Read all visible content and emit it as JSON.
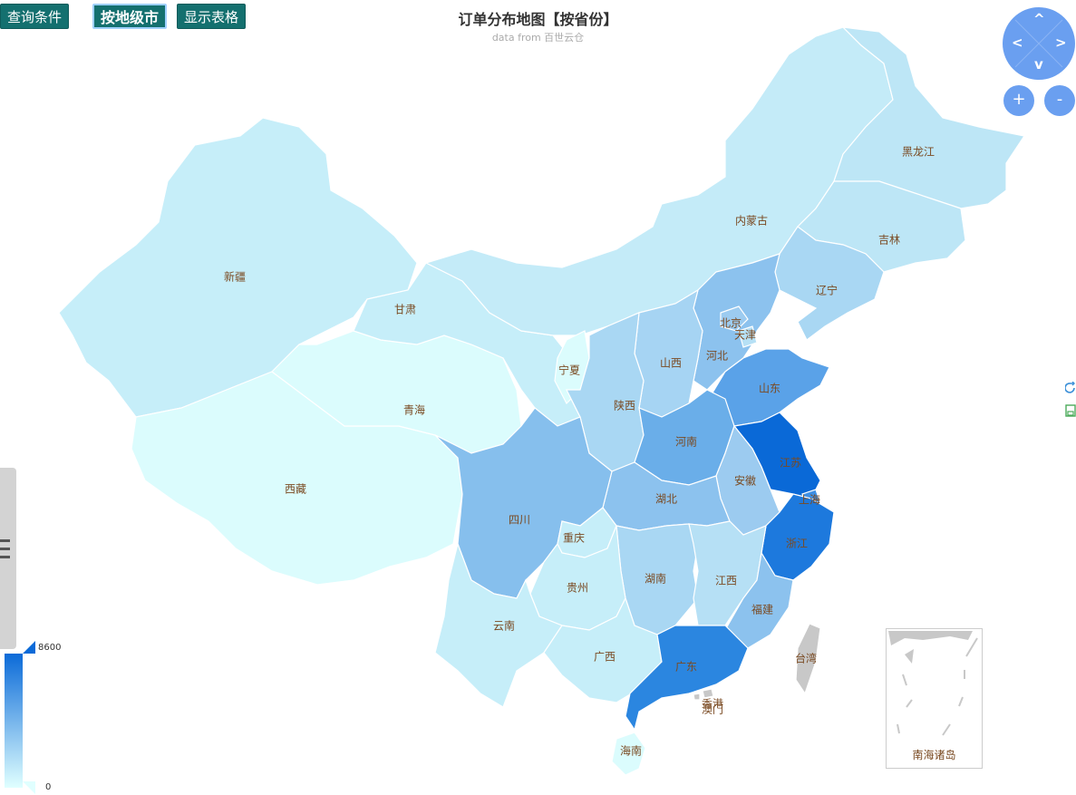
{
  "toolbar": {
    "query_label": "查询条件",
    "by_city_label": "按地级市",
    "show_table_label": "显示表格"
  },
  "title": "订单分布地图【按省份】",
  "subtitle": "data from 百世云仓",
  "legend": {
    "max": "8600",
    "min": "0",
    "color_high": "#0b6ad8",
    "color_low": "#e0ffff"
  },
  "nav": {
    "up": "^",
    "down": "v",
    "left": "<",
    "right": ">",
    "zoom_in": "+",
    "zoom_out": "-"
  },
  "provinces": [
    {
      "name": "黑龙江",
      "color": "#bde6f6"
    },
    {
      "name": "吉林",
      "color": "#bde6f6"
    },
    {
      "name": "辽宁",
      "color": "#a9d7f3"
    },
    {
      "name": "内蒙古",
      "color": "#c4ebf8"
    },
    {
      "name": "北京",
      "color": "#9ccbf0"
    },
    {
      "name": "天津",
      "color": "#b6e0f5"
    },
    {
      "name": "河北",
      "color": "#8cc2ee"
    },
    {
      "name": "山西",
      "color": "#a6d4f3"
    },
    {
      "name": "山东",
      "color": "#5aa2e8"
    },
    {
      "name": "新疆",
      "color": "#c6eef9"
    },
    {
      "name": "甘肃",
      "color": "#c6eef9"
    },
    {
      "name": "宁夏",
      "color": "#dbfcfd"
    },
    {
      "name": "陕西",
      "color": "#a9d7f3"
    },
    {
      "name": "青海",
      "color": "#dbfcfd"
    },
    {
      "name": "西藏",
      "color": "#dbfcfd"
    },
    {
      "name": "河南",
      "color": "#6aaee9"
    },
    {
      "name": "江苏",
      "color": "#0a69d7"
    },
    {
      "name": "安徽",
      "color": "#9ccbf0"
    },
    {
      "name": "上海",
      "color": "#3f8fe3"
    },
    {
      "name": "湖北",
      "color": "#8cc2ee"
    },
    {
      "name": "四川",
      "color": "#86bfed"
    },
    {
      "name": "重庆",
      "color": "#c6eef9"
    },
    {
      "name": "浙江",
      "color": "#1d79dd"
    },
    {
      "name": "湖南",
      "color": "#a9d7f3"
    },
    {
      "name": "江西",
      "color": "#b6e0f5"
    },
    {
      "name": "贵州",
      "color": "#c6eef9"
    },
    {
      "name": "云南",
      "color": "#c6eef9"
    },
    {
      "name": "福建",
      "color": "#8cc2ee"
    },
    {
      "name": "广西",
      "color": "#c6eef9"
    },
    {
      "name": "广东",
      "color": "#2b86e0"
    },
    {
      "name": "海南",
      "color": "#dbfcfd"
    },
    {
      "name": "台湾",
      "color": "#c8c8c8"
    },
    {
      "name": "香港",
      "color": "#c8c8c8"
    },
    {
      "name": "澳门",
      "color": "#c8c8c8"
    }
  ],
  "inset_label": "南海诸岛"
}
